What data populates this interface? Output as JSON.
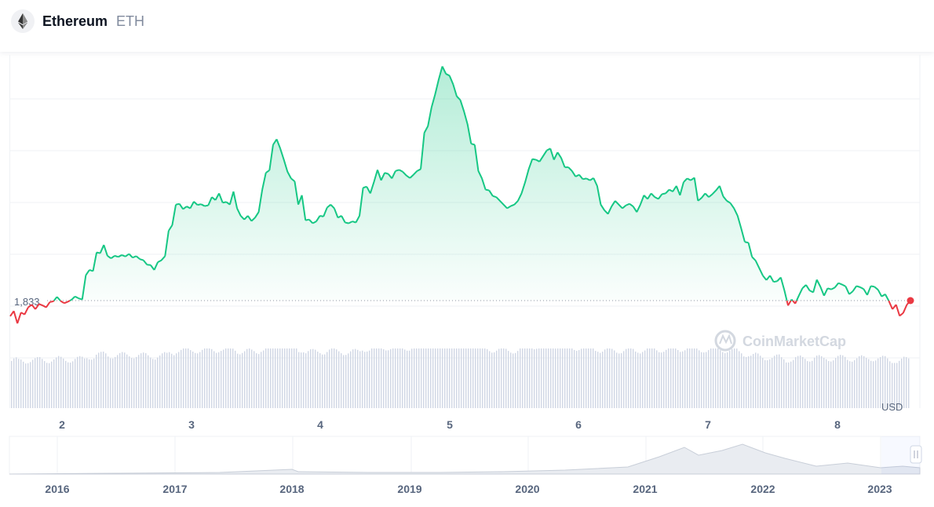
{
  "header": {
    "coin_name": "Ethereum",
    "coin_symbol": "ETH"
  },
  "watermark": "CoinMarketCap",
  "currency_label": "USD",
  "colors": {
    "up": "#16c784",
    "down": "#ea3943",
    "grid": "#eff2f5",
    "volume": "#cfd6e4"
  },
  "chart_data": {
    "type": "line",
    "reference_value_label": "1,833",
    "x_ticks": [
      "2",
      "3",
      "4",
      "5",
      "6",
      "7",
      "8"
    ],
    "series": [
      {
        "values": [
          1791,
          1805,
          1772,
          1801,
          1796,
          1815,
          1822,
          1810,
          1824,
          1820,
          1815,
          1829,
          1831,
          1843,
          1832,
          1826,
          1830,
          1835,
          1844,
          1839,
          1836,
          1901,
          1915,
          1912,
          1962,
          1960,
          1982,
          1953,
          1946,
          1953,
          1950,
          1955,
          1951,
          1958,
          1948,
          1952,
          1944,
          1941,
          1929,
          1928,
          1915,
          1936,
          1941,
          1952,
          2020,
          2035,
          2090,
          2092,
          2078,
          2085,
          2080,
          2098,
          2089,
          2091,
          2086,
          2088,
          2110,
          2102,
          2120,
          2095,
          2097,
          2090,
          2125,
          2080,
          2060,
          2050,
          2060,
          2046,
          2055,
          2070,
          2130,
          2175,
          2182,
          2250,
          2265,
          2240,
          2210,
          2178,
          2160,
          2152,
          2090,
          2115,
          2048,
          2050,
          2040,
          2045,
          2060,
          2058,
          2082,
          2090,
          2080,
          2055,
          2060,
          2042,
          2040,
          2045,
          2042,
          2060,
          2135,
          2138,
          2120,
          2150,
          2183,
          2155,
          2175,
          2172,
          2160,
          2180,
          2183,
          2178,
          2168,
          2161,
          2170,
          2180,
          2185,
          2282,
          2300,
          2350,
          2385,
          2425,
          2460,
          2440,
          2435,
          2412,
          2380,
          2370,
          2340,
          2305,
          2253,
          2250,
          2180,
          2160,
          2130,
          2128,
          2113,
          2110,
          2100,
          2090,
          2080,
          2086,
          2090,
          2100,
          2120,
          2150,
          2185,
          2212,
          2210,
          2205,
          2220,
          2235,
          2240,
          2210,
          2230,
          2215,
          2190,
          2190,
          2180,
          2165,
          2170,
          2158,
          2160,
          2155,
          2161,
          2140,
          2090,
          2075,
          2065,
          2085,
          2100,
          2090,
          2080,
          2088,
          2092,
          2085,
          2070,
          2090,
          2115,
          2105,
          2120,
          2110,
          2105,
          2118,
          2120,
          2130,
          2125,
          2140,
          2115,
          2150,
          2160,
          2155,
          2162,
          2100,
          2108,
          2120,
          2110,
          2118,
          2128,
          2140,
          2112,
          2100,
          2094,
          2080,
          2060,
          2026,
          1990,
          1988,
          1950,
          1940,
          1920,
          1900,
          1888,
          1900,
          1883,
          1885,
          1895,
          1860,
          1820,
          1836,
          1825,
          1846,
          1866,
          1875,
          1860,
          1855,
          1889,
          1870,
          1846,
          1866,
          1863,
          1868,
          1880,
          1876,
          1871,
          1850,
          1858,
          1872,
          1869,
          1864,
          1848,
          1872,
          1870,
          1862,
          1844,
          1850,
          1832,
          1810,
          1822,
          1792,
          1800,
          1822,
          1833
        ]
      }
    ]
  },
  "navigator": {
    "year_ticks": [
      "2016",
      "2017",
      "2018",
      "2019",
      "2020",
      "2021",
      "2022",
      "2023"
    ]
  }
}
